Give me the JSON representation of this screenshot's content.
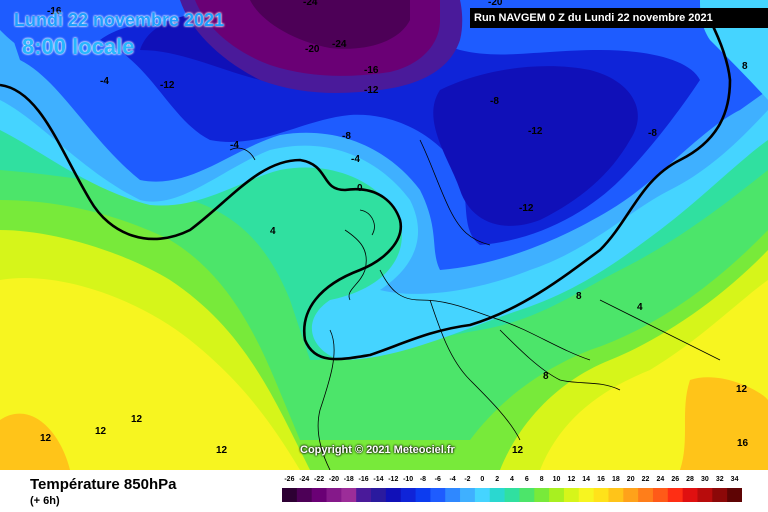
{
  "header": {
    "date": "Lundi 22 novembre 2021",
    "local_time": "8:00 locale",
    "run_info": "Run NAVGEM 0 Z du Lundi 22 novembre 2021"
  },
  "copyright": "Copyright © 2021 Meteociel.fr",
  "footer": {
    "variable": "Température 850hPa",
    "lead_time": "(+ 6h)"
  },
  "scale": {
    "labels": [
      "-26",
      "-24",
      "-22",
      "-20",
      "-18",
      "-16",
      "-14",
      "-12",
      "-10",
      "-8",
      "-6",
      "-4",
      "-2",
      "0",
      "2",
      "4",
      "6",
      "8",
      "10",
      "12",
      "14",
      "16",
      "18",
      "20",
      "22",
      "24",
      "26",
      "28",
      "30",
      "32",
      "34"
    ],
    "colors": [
      "#2d0033",
      "#4d0057",
      "#6a0075",
      "#85198a",
      "#9c2d99",
      "#4a1a9a",
      "#2a1a9e",
      "#1010b8",
      "#0f24d8",
      "#0c3cf0",
      "#1e5cff",
      "#2f88ff",
      "#3fb0ff",
      "#45d4ff",
      "#2ad8d0",
      "#30e0a0",
      "#4ce56a",
      "#78ea3a",
      "#a8f020",
      "#d6f51a",
      "#f7f520",
      "#ffe21a",
      "#ffc419",
      "#ffa21a",
      "#ff7e1a",
      "#ff5a18",
      "#ff2e14",
      "#e01010",
      "#b80c0c",
      "#8c0808",
      "#5e0404"
    ]
  },
  "labels": [
    {
      "text": "-16"
    },
    {
      "text": "-24"
    },
    {
      "text": "-20"
    },
    {
      "text": "-24"
    },
    {
      "text": "-16"
    },
    {
      "text": "-12"
    },
    {
      "text": "-4"
    },
    {
      "text": "-12"
    },
    {
      "text": "-8"
    },
    {
      "text": "-4"
    },
    {
      "text": "-4"
    },
    {
      "text": "0"
    },
    {
      "text": "-8"
    },
    {
      "text": "-12"
    },
    {
      "text": "-8"
    },
    {
      "text": "-12"
    },
    {
      "text": "-20"
    },
    {
      "text": "8"
    },
    {
      "text": "4"
    },
    {
      "text": "8"
    },
    {
      "text": "4"
    },
    {
      "text": "8"
    },
    {
      "text": "12"
    },
    {
      "text": "12"
    },
    {
      "text": "12"
    },
    {
      "text": "12"
    },
    {
      "text": "12"
    },
    {
      "text": "12"
    },
    {
      "text": "16"
    }
  ],
  "colors": {
    "deep_cold": "#3d0a5c",
    "very_cold": "#1212c8",
    "cold": "#1e5cff",
    "cool": "#3fb0ff",
    "mild": "#4ce56a",
    "warm": "#d6f51a",
    "hot": "#ffc419"
  }
}
